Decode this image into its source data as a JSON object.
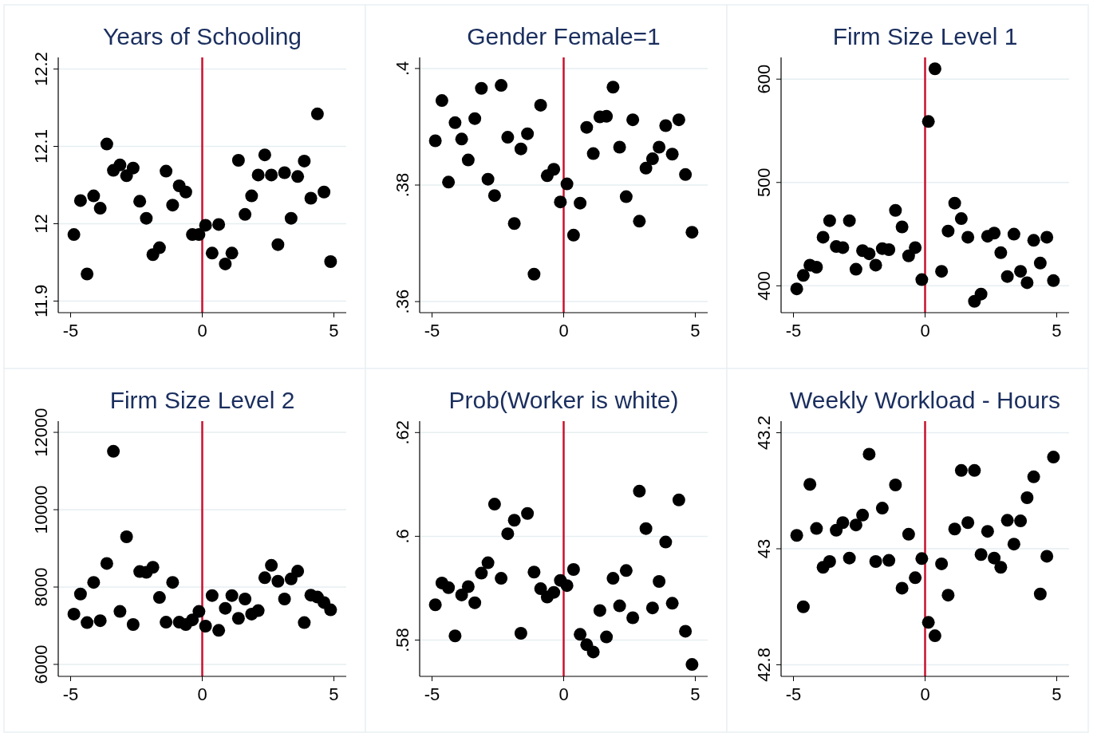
{
  "chart_data": [
    {
      "type": "scatter",
      "title": "Years of Schooling",
      "x": [
        -4.875,
        -4.625,
        -4.375,
        -4.125,
        -3.875,
        -3.625,
        -3.375,
        -3.125,
        -2.875,
        -2.625,
        -2.375,
        -2.125,
        -1.875,
        -1.625,
        -1.375,
        -1.125,
        -0.875,
        -0.625,
        -0.375,
        -0.125,
        0.125,
        0.375,
        0.625,
        0.875,
        1.125,
        1.375,
        1.625,
        1.875,
        2.125,
        2.375,
        2.625,
        2.875,
        3.125,
        3.375,
        3.625,
        3.875,
        4.125,
        4.375,
        4.625,
        4.875
      ],
      "series": [
        {
          "color": "#000000",
          "values": [
            11.986,
            12.03,
            11.935,
            12.036,
            12.02,
            12.103,
            12.069,
            12.076,
            12.062,
            12.072,
            12.029,
            12.007,
            11.96,
            11.969,
            12.068,
            12.024,
            12.049,
            12.041,
            11.986,
            11.986,
            11.998,
            11.962,
            11.999,
            11.948,
            11.962,
            12.082,
            12.012,
            12.036,
            12.063,
            12.089,
            12.063,
            11.973,
            12.066,
            12.007,
            12.061,
            12.081,
            12.033,
            12.142,
            12.041,
            11.951
          ]
        }
      ],
      "xlim": [
        -5.47,
        5.47
      ],
      "xticks": [
        -5,
        0,
        5
      ],
      "ylim": [
        11.885,
        12.215
      ],
      "yticks": [
        {
          "value": 11.9,
          "label": "11.9"
        },
        12,
        {
          "value": 12.1,
          "label": "12.1"
        },
        {
          "value": 12.2,
          "label": "12.2"
        }
      ],
      "grid": "y",
      "marker": "circle",
      "ref_lines": [
        {
          "axis": "x",
          "value": 0,
          "color": "#c8102e"
        }
      ]
    },
    {
      "type": "scatter",
      "title": "Gender Female=1",
      "x": [
        -4.875,
        -4.625,
        -4.375,
        -4.125,
        -3.875,
        -3.625,
        -3.375,
        -3.125,
        -2.875,
        -2.625,
        -2.375,
        -2.125,
        -1.875,
        -1.625,
        -1.375,
        -1.125,
        -0.875,
        -0.625,
        -0.375,
        -0.125,
        0.125,
        0.375,
        0.625,
        0.875,
        1.125,
        1.375,
        1.625,
        1.875,
        2.125,
        2.375,
        2.625,
        2.875,
        3.125,
        3.375,
        3.625,
        3.875,
        4.125,
        4.375,
        4.625,
        4.875
      ],
      "series": [
        {
          "color": "#000000",
          "values": [
            0.3876,
            0.3945,
            0.3805,
            0.3907,
            0.3879,
            0.3843,
            0.3914,
            0.3966,
            0.381,
            0.3782,
            0.3971,
            0.3882,
            0.3734,
            0.3862,
            0.3888,
            0.3647,
            0.3937,
            0.3816,
            0.3827,
            0.3771,
            0.3802,
            0.3714,
            0.3769,
            0.3899,
            0.3854,
            0.3917,
            0.3918,
            0.3968,
            0.3865,
            0.378,
            0.3912,
            0.3738,
            0.3829,
            0.3845,
            0.3865,
            0.3902,
            0.3853,
            0.3912,
            0.3818,
            0.3719
          ]
        }
      ],
      "xlim": [
        -5.47,
        5.47
      ],
      "xticks": [
        -5,
        0,
        5
      ],
      "ylim": [
        0.3581,
        0.4019
      ],
      "yticks": [
        {
          "value": 0.36,
          "label": ".36"
        },
        {
          "value": 0.38,
          "label": ".38"
        },
        {
          "value": 0.4,
          "label": ".4"
        }
      ],
      "grid": "y",
      "marker": "circle",
      "ref_lines": [
        {
          "axis": "x",
          "value": 0,
          "color": "#c8102e"
        }
      ]
    },
    {
      "type": "scatter",
      "title": "Firm Size Level 1",
      "x": [
        -4.875,
        -4.625,
        -4.375,
        -4.125,
        -3.875,
        -3.625,
        -3.375,
        -3.125,
        -2.875,
        -2.625,
        -2.375,
        -2.125,
        -1.875,
        -1.625,
        -1.375,
        -1.125,
        -0.875,
        -0.625,
        -0.375,
        -0.125,
        0.125,
        0.375,
        0.625,
        0.875,
        1.125,
        1.375,
        1.625,
        1.875,
        2.125,
        2.375,
        2.625,
        2.875,
        3.125,
        3.375,
        3.625,
        3.875,
        4.125,
        4.375,
        4.625,
        4.875
      ],
      "series": [
        {
          "color": "#000000",
          "values": [
            397,
            410,
            420,
            418,
            447,
            463,
            438,
            437,
            463,
            416,
            434,
            431,
            420,
            436,
            435,
            473,
            457,
            429,
            437,
            406,
            559,
            610,
            414,
            453,
            480,
            465,
            447,
            385,
            392,
            448,
            451,
            432,
            409,
            450,
            414,
            403,
            444,
            422,
            447,
            405
          ]
        }
      ],
      "xlim": [
        -5.47,
        5.47
      ],
      "xticks": [
        -5,
        0,
        5
      ],
      "ylim": [
        374,
        621
      ],
      "yticks": [
        400,
        500,
        600
      ],
      "grid": "y",
      "marker": "circle",
      "ref_lines": [
        {
          "axis": "x",
          "value": 0,
          "color": "#c8102e"
        }
      ]
    },
    {
      "type": "scatter",
      "title": "Firm Size Level 2",
      "x": [
        -4.875,
        -4.625,
        -4.375,
        -4.125,
        -3.875,
        -3.625,
        -3.375,
        -3.125,
        -2.875,
        -2.625,
        -2.375,
        -2.125,
        -1.875,
        -1.625,
        -1.375,
        -1.125,
        -0.875,
        -0.625,
        -0.375,
        -0.125,
        0.125,
        0.375,
        0.625,
        0.875,
        1.125,
        1.375,
        1.625,
        1.875,
        2.125,
        2.375,
        2.625,
        2.875,
        3.125,
        3.375,
        3.625,
        3.875,
        4.125,
        4.375,
        4.625,
        4.875
      ],
      "series": [
        {
          "color": "#000000",
          "values": [
            7300,
            7820,
            7080,
            8120,
            7130,
            8610,
            11510,
            7370,
            9300,
            7030,
            8400,
            8380,
            8510,
            7730,
            7090,
            8120,
            7090,
            7030,
            7150,
            7370,
            6990,
            7780,
            6880,
            7450,
            7780,
            7190,
            7690,
            7300,
            7390,
            8240,
            8560,
            8150,
            7690,
            8210,
            8410,
            7080,
            7790,
            7740,
            7600,
            7410
          ]
        }
      ],
      "xlim": [
        -5.47,
        5.47
      ],
      "xticks": [
        -5,
        0,
        5
      ],
      "ylim": [
        5690,
        12290
      ],
      "yticks": [
        6000,
        8000,
        10000,
        12000
      ],
      "grid": "y",
      "marker": "circle",
      "ref_lines": [
        {
          "axis": "x",
          "value": 0,
          "color": "#c8102e"
        }
      ]
    },
    {
      "type": "scatter",
      "title": "Prob(Worker is white)",
      "x": [
        -4.875,
        -4.625,
        -4.375,
        -4.125,
        -3.875,
        -3.625,
        -3.375,
        -3.125,
        -2.875,
        -2.625,
        -2.375,
        -2.125,
        -1.875,
        -1.625,
        -1.375,
        -1.125,
        -0.875,
        -0.625,
        -0.375,
        -0.125,
        0.125,
        0.375,
        0.625,
        0.875,
        1.125,
        1.375,
        1.625,
        1.875,
        2.125,
        2.375,
        2.625,
        2.875,
        3.125,
        3.375,
        3.625,
        3.875,
        4.125,
        4.375,
        4.625,
        4.875
      ],
      "series": [
        {
          "color": "#000000",
          "values": [
            0.5868,
            0.591,
            0.5901,
            0.5808,
            0.5887,
            0.5903,
            0.5872,
            0.5929,
            0.5949,
            0.6062,
            0.5919,
            0.6005,
            0.6031,
            0.5813,
            0.6044,
            0.5931,
            0.5899,
            0.5883,
            0.5892,
            0.5915,
            0.5905,
            0.5936,
            0.5811,
            0.5791,
            0.5777,
            0.5857,
            0.5806,
            0.5919,
            0.5866,
            0.5934,
            0.5843,
            0.6087,
            0.6015,
            0.5862,
            0.5913,
            0.5989,
            0.5871,
            0.607,
            0.5817,
            0.5753
          ]
        }
      ],
      "xlim": [
        -5.47,
        5.47
      ],
      "xticks": [
        -5,
        0,
        5
      ],
      "ylim": [
        0.573,
        0.6222
      ],
      "yticks": [
        {
          "value": 0.58,
          "label": ".58"
        },
        {
          "value": 0.6,
          "label": ".6"
        },
        {
          "value": 0.62,
          "label": ".62"
        }
      ],
      "grid": "y",
      "marker": "circle",
      "ref_lines": [
        {
          "axis": "x",
          "value": 0,
          "color": "#c8102e"
        }
      ]
    },
    {
      "type": "scatter",
      "title": "Weekly Workload - Hours",
      "x": [
        -4.875,
        -4.625,
        -4.375,
        -4.125,
        -3.875,
        -3.625,
        -3.375,
        -3.125,
        -2.875,
        -2.625,
        -2.375,
        -2.125,
        -1.875,
        -1.625,
        -1.375,
        -1.125,
        -0.875,
        -0.625,
        -0.375,
        -0.125,
        0.125,
        0.375,
        0.625,
        0.875,
        1.125,
        1.375,
        1.625,
        1.875,
        2.125,
        2.375,
        2.625,
        2.875,
        3.125,
        3.375,
        3.625,
        3.875,
        4.125,
        4.375,
        4.625,
        4.875
      ],
      "series": [
        {
          "color": "#000000",
          "values": [
            43.023,
            42.9,
            43.111,
            43.035,
            42.968,
            42.978,
            43.032,
            43.045,
            42.984,
            43.041,
            43.058,
            43.163,
            42.978,
            43.07,
            42.98,
            43.11,
            42.932,
            43.025,
            42.95,
            42.983,
            42.873,
            42.85,
            42.974,
            42.92,
            43.034,
            43.135,
            43.045,
            43.135,
            42.99,
            43.03,
            42.984,
            42.968,
            43.049,
            43.008,
            43.048,
            43.088,
            43.124,
            42.922,
            42.987,
            43.158
          ]
        }
      ],
      "xlim": [
        -5.47,
        5.47
      ],
      "xticks": [
        -5,
        0,
        5
      ],
      "ylim": [
        42.78,
        43.22
      ],
      "yticks": [
        {
          "value": 42.8,
          "label": "42.8"
        },
        43,
        {
          "value": 43.2,
          "label": "43.2"
        }
      ],
      "grid": "y",
      "marker": "circle",
      "ref_lines": [
        {
          "axis": "x",
          "value": 0,
          "color": "#c8102e"
        }
      ]
    }
  ]
}
